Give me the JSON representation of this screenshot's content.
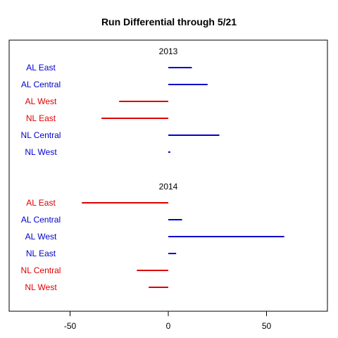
{
  "chart_data": {
    "type": "bar",
    "orientation": "horizontal",
    "title": "Run Differential through 5/21",
    "xlim": [
      -80,
      80
    ],
    "xticks": [
      -50,
      0,
      50
    ],
    "grid": false,
    "colors": {
      "positive": "#0000cc",
      "negative": "#dd0000"
    },
    "groups": [
      {
        "name": "2013",
        "categories": [
          "AL East",
          "AL Central",
          "AL West",
          "NL East",
          "NL Central",
          "NL West"
        ],
        "values": [
          12,
          20,
          -25,
          -34,
          26,
          1
        ]
      },
      {
        "name": "2014",
        "categories": [
          "AL East",
          "AL Central",
          "AL West",
          "NL East",
          "NL Central",
          "NL West"
        ],
        "values": [
          -44,
          7,
          59,
          4,
          -16,
          -10
        ]
      }
    ]
  }
}
